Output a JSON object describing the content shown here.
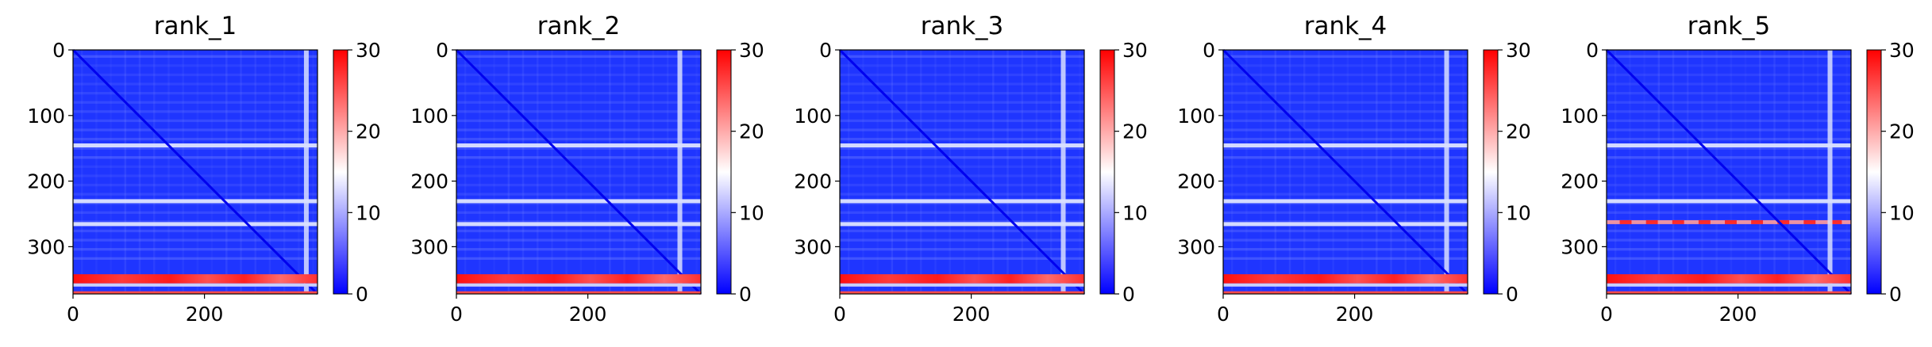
{
  "chart_data": [
    {
      "type": "heatmap",
      "title": "rank_1",
      "xlim": [
        0,
        372
      ],
      "ylim": [
        372,
        0
      ],
      "xticks": [
        "0",
        "200"
      ],
      "yticks": [
        "0",
        "100",
        "200",
        "300"
      ],
      "colorbar": {
        "min": 0,
        "max": 30,
        "ticks": [
          "0",
          "10",
          "20",
          "30"
        ],
        "colors": [
          "#0000ff",
          "#ffffff",
          "#ff0000"
        ]
      },
      "bright_rows": [
        145,
        230,
        265
      ],
      "hot_band": [
        342,
        356
      ],
      "bottom_row": 368,
      "bright_cols": [
        355
      ],
      "diagonal": true
    },
    {
      "type": "heatmap",
      "title": "rank_2",
      "xlim": [
        0,
        372
      ],
      "ylim": [
        372,
        0
      ],
      "xticks": [
        "0",
        "200"
      ],
      "yticks": [
        "0",
        "100",
        "200",
        "300"
      ],
      "colorbar": {
        "min": 0,
        "max": 30,
        "ticks": [
          "0",
          "10",
          "20",
          "30"
        ],
        "colors": [
          "#0000ff",
          "#ffffff",
          "#ff0000"
        ]
      },
      "bright_rows": [
        145,
        230,
        265
      ],
      "hot_band": [
        342,
        356
      ],
      "bottom_row": 368,
      "bright_cols": [
        340
      ],
      "diagonal": true
    },
    {
      "type": "heatmap",
      "title": "rank_3",
      "xlim": [
        0,
        372
      ],
      "ylim": [
        372,
        0
      ],
      "xticks": [
        "0",
        "200"
      ],
      "yticks": [
        "0",
        "100",
        "200",
        "300"
      ],
      "colorbar": {
        "min": 0,
        "max": 30,
        "ticks": [
          "0",
          "10",
          "20",
          "30"
        ],
        "colors": [
          "#0000ff",
          "#ffffff",
          "#ff0000"
        ]
      },
      "bright_rows": [
        145,
        230,
        265
      ],
      "hot_band": [
        342,
        356
      ],
      "bottom_row": 368,
      "bright_cols": [
        340
      ],
      "diagonal": true
    },
    {
      "type": "heatmap",
      "title": "rank_4",
      "xlim": [
        0,
        372
      ],
      "ylim": [
        372,
        0
      ],
      "xticks": [
        "0",
        "200"
      ],
      "yticks": [
        "0",
        "100",
        "200",
        "300"
      ],
      "colorbar": {
        "min": 0,
        "max": 30,
        "ticks": [
          "0",
          "10",
          "20",
          "30"
        ],
        "colors": [
          "#0000ff",
          "#ffffff",
          "#ff0000"
        ]
      },
      "bright_rows": [
        145,
        230,
        265
      ],
      "hot_band": [
        342,
        356
      ],
      "bottom_row": 368,
      "bright_cols": [
        340
      ],
      "diagonal": true
    },
    {
      "type": "heatmap",
      "title": "rank_5",
      "xlim": [
        0,
        372
      ],
      "ylim": [
        372,
        0
      ],
      "xticks": [
        "0",
        "200"
      ],
      "yticks": [
        "0",
        "100",
        "200",
        "300"
      ],
      "colorbar": {
        "min": 0,
        "max": 30,
        "ticks": [
          "0",
          "10",
          "20",
          "30"
        ],
        "colors": [
          "#0000ff",
          "#ffffff",
          "#ff0000"
        ]
      },
      "bright_rows": [
        145,
        230,
        262
      ],
      "hot_band": [
        342,
        356
      ],
      "bottom_row": 368,
      "bright_cols": [
        340
      ],
      "diagonal": true,
      "red_row": 262
    }
  ]
}
